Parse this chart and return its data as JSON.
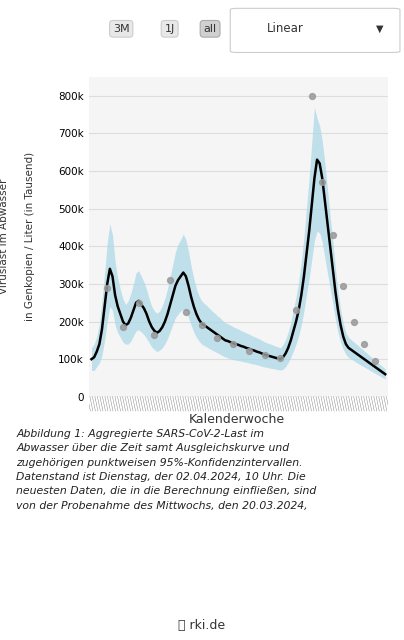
{
  "title": "",
  "ylabel_line1": "Viruslast im Abwasser",
  "ylabel_line2": "in Genkopien / Liter (in Tausend)",
  "xlabel": "Kalenderwoche",
  "ylim": [
    0,
    850000
  ],
  "yticks": [
    0,
    100000,
    200000,
    300000,
    400000,
    500000,
    600000,
    700000,
    800000
  ],
  "ytick_labels": [
    "0",
    "100k",
    "200k",
    "300k",
    "400k",
    "500k",
    "600k",
    "700k",
    "800k"
  ],
  "bg_color": "#ffffff",
  "plot_bg_color": "#f5f5f5",
  "grid_color": "#dddddd",
  "trend_color": "#000000",
  "ci_color": "#a8d8e8",
  "dot_color": "#999999",
  "caption": "Abbildung 1: Aggregierte SARS-CoV-2-Last im\nAbwasser über die Zeit samt Ausgleichskurve und\nzugehörigen punktweisen 95%-Konfidenzintervallen.\nDatenstand ist Dienstag, der 02.04.2024, 10 Uhr. Die\nneuesten Daten, die in die Berechnung einfließen, sind\nvon der Probenahme des Mittwochs, den 20.03.2024,",
  "x_weeks": [
    1,
    2,
    3,
    4,
    5,
    6,
    7,
    8,
    9,
    10,
    11,
    12,
    13,
    14,
    15,
    16,
    17,
    18,
    19,
    20,
    21,
    22,
    23,
    24,
    25,
    26,
    27,
    28,
    29,
    30,
    31,
    32,
    33,
    34,
    35,
    36,
    37,
    38,
    39,
    40,
    41,
    42,
    43,
    44,
    45,
    46,
    47,
    48,
    49,
    50,
    51,
    52,
    53,
    54,
    55,
    56,
    57,
    58,
    59,
    60,
    61,
    62,
    63,
    64,
    65,
    66,
    67,
    68,
    69,
    70,
    71,
    72,
    73,
    74,
    75,
    76,
    77,
    78,
    79,
    80,
    81,
    82,
    83,
    84,
    85,
    86,
    87,
    88,
    89,
    90,
    91,
    92,
    93,
    94,
    95,
    96,
    97,
    98,
    99,
    100,
    101,
    102,
    103,
    104,
    105,
    106,
    107,
    108,
    109,
    110,
    111,
    112,
    113
  ],
  "trend_values": [
    100000,
    105000,
    120000,
    140000,
    180000,
    240000,
    300000,
    340000,
    320000,
    270000,
    240000,
    220000,
    200000,
    190000,
    195000,
    210000,
    230000,
    250000,
    255000,
    245000,
    235000,
    220000,
    200000,
    185000,
    175000,
    170000,
    175000,
    185000,
    200000,
    220000,
    245000,
    270000,
    295000,
    310000,
    320000,
    330000,
    320000,
    295000,
    265000,
    240000,
    220000,
    205000,
    195000,
    190000,
    185000,
    180000,
    175000,
    170000,
    165000,
    160000,
    155000,
    150000,
    148000,
    145000,
    142000,
    140000,
    138000,
    135000,
    133000,
    130000,
    128000,
    125000,
    123000,
    120000,
    118000,
    115000,
    112000,
    110000,
    108000,
    106000,
    104000,
    102000,
    100000,
    105000,
    115000,
    130000,
    150000,
    175000,
    200000,
    230000,
    270000,
    320000,
    380000,
    440000,
    510000,
    580000,
    630000,
    620000,
    580000,
    520000,
    460000,
    400000,
    340000,
    280000,
    230000,
    190000,
    160000,
    140000,
    130000,
    125000,
    120000,
    115000,
    110000,
    105000,
    100000,
    95000,
    90000,
    85000,
    80000,
    75000,
    70000,
    65000,
    60000
  ],
  "ci_upper": [
    130000,
    140000,
    160000,
    195000,
    255000,
    330000,
    410000,
    460000,
    430000,
    360000,
    315000,
    285000,
    260000,
    245000,
    255000,
    275000,
    300000,
    330000,
    335000,
    320000,
    305000,
    285000,
    260000,
    240000,
    228000,
    222000,
    228000,
    242000,
    262000,
    288000,
    320000,
    352000,
    385000,
    405000,
    418000,
    432000,
    418000,
    386000,
    347000,
    314000,
    288000,
    268000,
    255000,
    248000,
    242000,
    235000,
    228000,
    222000,
    215000,
    210000,
    203000,
    197000,
    194000,
    190000,
    186000,
    183000,
    180000,
    176000,
    173000,
    170000,
    167000,
    163000,
    160000,
    157000,
    154000,
    150000,
    146000,
    143000,
    141000,
    138000,
    135000,
    133000,
    130000,
    138000,
    152000,
    172000,
    198000,
    232000,
    266000,
    306000,
    358000,
    424000,
    504000,
    582000,
    676000,
    770000,
    740000,
    720000,
    680000,
    620000,
    550000,
    480000,
    416000,
    342000,
    280000,
    232000,
    196000,
    170000,
    158000,
    152000,
    146000,
    140000,
    134000,
    128000,
    122000,
    116000,
    110000,
    104000,
    98000,
    92000,
    86000,
    80000,
    74000
  ],
  "ci_lower": [
    70000,
    70000,
    80000,
    90000,
    110000,
    150000,
    200000,
    240000,
    230000,
    190000,
    170000,
    158000,
    145000,
    140000,
    140000,
    148000,
    162000,
    175000,
    178000,
    172000,
    165000,
    155000,
    143000,
    132000,
    125000,
    120000,
    124000,
    130000,
    141000,
    155000,
    173000,
    192000,
    210000,
    220000,
    228000,
    232000,
    228000,
    210000,
    190000,
    172000,
    158000,
    148000,
    140000,
    136000,
    132000,
    128000,
    124000,
    120000,
    117000,
    113000,
    109000,
    106000,
    103000,
    101000,
    99000,
    97000,
    96000,
    95000,
    93000,
    92000,
    90000,
    88000,
    87000,
    85000,
    83000,
    81000,
    79000,
    78000,
    76000,
    75000,
    74000,
    72000,
    71000,
    73000,
    80000,
    91000,
    105000,
    122000,
    140000,
    162000,
    191000,
    228000,
    272000,
    315000,
    365000,
    415000,
    440000,
    435000,
    410000,
    368000,
    328000,
    288000,
    248000,
    206000,
    170000,
    145000,
    126000,
    112000,
    104000,
    100000,
    96000,
    91000,
    87000,
    83000,
    79000,
    75000,
    71000,
    67000,
    63000,
    59000,
    55000,
    51000,
    47000
  ],
  "scatter_x": [
    7,
    13,
    19,
    25,
    31,
    37,
    43,
    49,
    55,
    61,
    67,
    73,
    79,
    85,
    89,
    93,
    97,
    101,
    105,
    109
  ],
  "scatter_y": [
    290000,
    185000,
    250000,
    165000,
    310000,
    225000,
    190000,
    155000,
    140000,
    122000,
    112000,
    103000,
    230000,
    800000,
    570000,
    430000,
    295000,
    200000,
    140000,
    95000
  ]
}
